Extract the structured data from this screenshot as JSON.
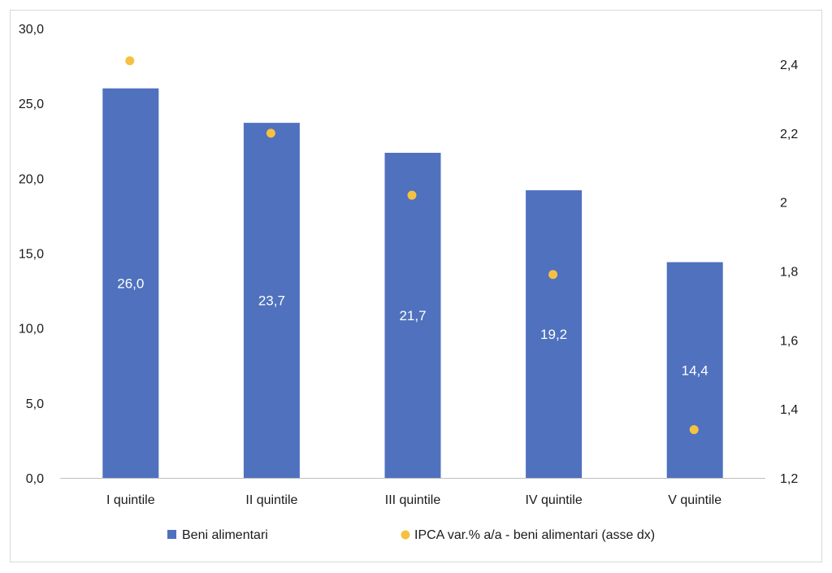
{
  "chart_data": {
    "type": "bar",
    "categories": [
      "I quintile",
      "II quintile",
      "III quintile",
      "IV quintile",
      "V quintile"
    ],
    "series": [
      {
        "name": "Beni alimentari",
        "type": "bar",
        "axis": "left",
        "color": "#4f71be",
        "values": [
          26.0,
          23.7,
          21.7,
          19.2,
          14.4
        ],
        "labels": [
          "26,0",
          "23,7",
          "21,7",
          "19,2",
          "14,4"
        ]
      },
      {
        "name": "IPCA var.% a/a - beni alimentari (asse dx)",
        "type": "scatter",
        "axis": "right",
        "color": "#f6c142",
        "values": [
          2.41,
          2.2,
          2.02,
          1.79,
          1.34
        ]
      }
    ],
    "y_left": {
      "min": 0,
      "max": 30,
      "step": 5,
      "tick_labels": [
        "0,0",
        "5,0",
        "10,0",
        "15,0",
        "20,0",
        "25,0",
        "30,0"
      ]
    },
    "y_right": {
      "min": 1.2,
      "max": 2.5,
      "ticks": [
        1.2,
        1.4,
        1.6,
        1.8,
        2.0,
        2.2,
        2.4
      ],
      "tick_labels": [
        "1,2",
        "1,4",
        "1,6",
        "1,8",
        "2",
        "2,2",
        "2,4"
      ]
    },
    "grid": false,
    "legend": "bottom",
    "title": "",
    "xlabel": "",
    "ylabel": ""
  }
}
